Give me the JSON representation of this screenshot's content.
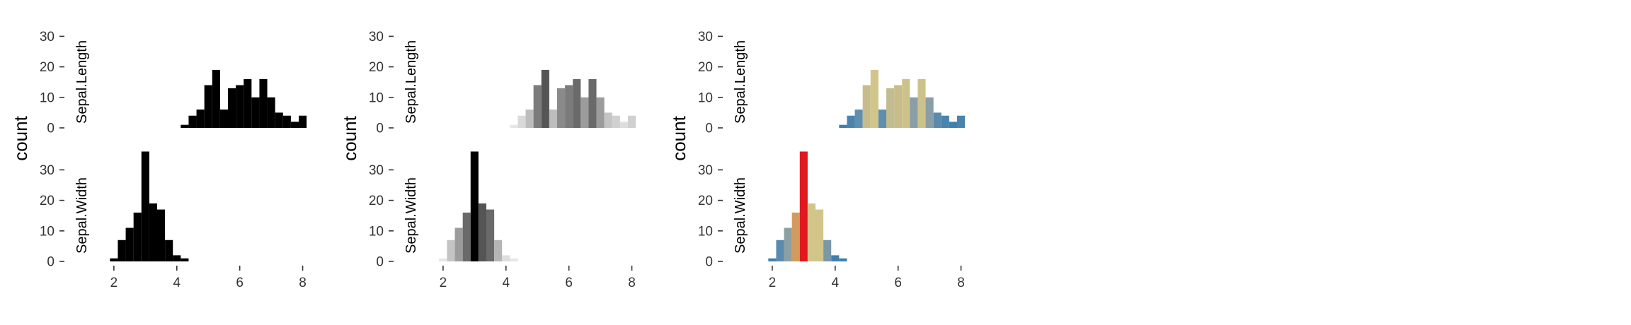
{
  "chart_data": [
    {
      "type": "bar",
      "panel": "histogram-black",
      "ylabel": "count",
      "xlim": [
        1.8,
        8.1
      ],
      "ylim": [
        0,
        37
      ],
      "yticks": [
        0,
        10,
        20,
        30
      ],
      "xticks": [
        2,
        4,
        6,
        8
      ],
      "bar_width": 0.25,
      "facets": [
        {
          "label": "Sepal.Length",
          "bars": [
            {
              "x": 4.25,
              "count": 1,
              "color": "#000000"
            },
            {
              "x": 4.5,
              "count": 4,
              "color": "#000000"
            },
            {
              "x": 4.75,
              "count": 6,
              "color": "#000000"
            },
            {
              "x": 5.0,
              "count": 14,
              "color": "#000000"
            },
            {
              "x": 5.25,
              "count": 19,
              "color": "#000000"
            },
            {
              "x": 5.5,
              "count": 6,
              "color": "#000000"
            },
            {
              "x": 5.75,
              "count": 13,
              "color": "#000000"
            },
            {
              "x": 6.0,
              "count": 14,
              "color": "#000000"
            },
            {
              "x": 6.25,
              "count": 16,
              "color": "#000000"
            },
            {
              "x": 6.5,
              "count": 10,
              "color": "#000000"
            },
            {
              "x": 6.75,
              "count": 16,
              "color": "#000000"
            },
            {
              "x": 7.0,
              "count": 10,
              "color": "#000000"
            },
            {
              "x": 7.25,
              "count": 5,
              "color": "#000000"
            },
            {
              "x": 7.5,
              "count": 4,
              "color": "#000000"
            },
            {
              "x": 7.75,
              "count": 2,
              "color": "#000000"
            },
            {
              "x": 8.0,
              "count": 4,
              "color": "#000000"
            }
          ]
        },
        {
          "label": "Sepal.Width",
          "bars": [
            {
              "x": 2.0,
              "count": 1,
              "color": "#000000"
            },
            {
              "x": 2.25,
              "count": 7,
              "color": "#000000"
            },
            {
              "x": 2.5,
              "count": 11,
              "color": "#000000"
            },
            {
              "x": 2.75,
              "count": 16,
              "color": "#000000"
            },
            {
              "x": 3.0,
              "count": 36,
              "color": "#000000"
            },
            {
              "x": 3.25,
              "count": 19,
              "color": "#000000"
            },
            {
              "x": 3.5,
              "count": 17,
              "color": "#000000"
            },
            {
              "x": 3.75,
              "count": 7,
              "color": "#000000"
            },
            {
              "x": 4.0,
              "count": 2,
              "color": "#000000"
            },
            {
              "x": 4.25,
              "count": 1,
              "color": "#000000"
            }
          ]
        }
      ]
    },
    {
      "type": "bar",
      "panel": "histogram-grey",
      "ylabel": "count",
      "xlim": [
        1.8,
        8.1
      ],
      "ylim": [
        0,
        37
      ],
      "yticks": [
        0,
        10,
        20,
        30
      ],
      "xticks": [
        2,
        4,
        6,
        8
      ],
      "bar_width": 0.25,
      "facets": [
        {
          "label": "Sepal.Length",
          "bars": [
            {
              "x": 4.25,
              "count": 1,
              "color": "#e6e6e6"
            },
            {
              "x": 4.5,
              "count": 4,
              "color": "#d9d9d9"
            },
            {
              "x": 4.75,
              "count": 6,
              "color": "#bdbdbd"
            },
            {
              "x": 5.0,
              "count": 14,
              "color": "#7b7b7b"
            },
            {
              "x": 5.25,
              "count": 19,
              "color": "#555555"
            },
            {
              "x": 5.5,
              "count": 6,
              "color": "#bdbdbd"
            },
            {
              "x": 5.75,
              "count": 13,
              "color": "#8a8a8a"
            },
            {
              "x": 6.0,
              "count": 14,
              "color": "#7b7b7b"
            },
            {
              "x": 6.25,
              "count": 16,
              "color": "#6a6a6a"
            },
            {
              "x": 6.5,
              "count": 10,
              "color": "#9c9c9c"
            },
            {
              "x": 6.75,
              "count": 16,
              "color": "#6a6a6a"
            },
            {
              "x": 7.0,
              "count": 10,
              "color": "#9c9c9c"
            },
            {
              "x": 7.25,
              "count": 5,
              "color": "#c4c4c4"
            },
            {
              "x": 7.5,
              "count": 4,
              "color": "#d0d0d0"
            },
            {
              "x": 7.75,
              "count": 2,
              "color": "#dedede"
            },
            {
              "x": 8.0,
              "count": 4,
              "color": "#d0d0d0"
            }
          ]
        },
        {
          "label": "Sepal.Width",
          "bars": [
            {
              "x": 2.0,
              "count": 1,
              "color": "#e6e6e6"
            },
            {
              "x": 2.25,
              "count": 7,
              "color": "#c4c4c4"
            },
            {
              "x": 2.5,
              "count": 11,
              "color": "#9c9c9c"
            },
            {
              "x": 2.75,
              "count": 16,
              "color": "#6a6a6a"
            },
            {
              "x": 3.0,
              "count": 36,
              "color": "#000000"
            },
            {
              "x": 3.25,
              "count": 19,
              "color": "#555555"
            },
            {
              "x": 3.5,
              "count": 17,
              "color": "#6a6a6a"
            },
            {
              "x": 3.75,
              "count": 7,
              "color": "#b5b5b5"
            },
            {
              "x": 4.0,
              "count": 2,
              "color": "#dedede"
            },
            {
              "x": 4.25,
              "count": 1,
              "color": "#e6e6e6"
            }
          ]
        }
      ]
    },
    {
      "type": "bar",
      "panel": "histogram-colour",
      "ylabel": "count",
      "xlim": [
        1.8,
        8.1
      ],
      "ylim": [
        0,
        37
      ],
      "yticks": [
        0,
        10,
        20,
        30
      ],
      "xticks": [
        2,
        4,
        6,
        8
      ],
      "bar_width": 0.25,
      "facets": [
        {
          "label": "Sepal.Length",
          "bars": [
            {
              "x": 4.25,
              "count": 1,
              "color": "#3f7fad"
            },
            {
              "x": 4.5,
              "count": 4,
              "color": "#4a84ad"
            },
            {
              "x": 4.75,
              "count": 6,
              "color": "#5f8fae"
            },
            {
              "x": 5.0,
              "count": 14,
              "color": "#c7bd8a"
            },
            {
              "x": 5.25,
              "count": 19,
              "color": "#d2c58a"
            },
            {
              "x": 5.5,
              "count": 6,
              "color": "#5f8fae"
            },
            {
              "x": 5.75,
              "count": 13,
              "color": "#c2bc91"
            },
            {
              "x": 6.0,
              "count": 14,
              "color": "#c7bd8a"
            },
            {
              "x": 6.25,
              "count": 16,
              "color": "#cdc28b"
            },
            {
              "x": 6.5,
              "count": 10,
              "color": "#8a9ea6"
            },
            {
              "x": 6.75,
              "count": 16,
              "color": "#cdc28b"
            },
            {
              "x": 7.0,
              "count": 10,
              "color": "#8a9ea6"
            },
            {
              "x": 7.25,
              "count": 5,
              "color": "#5a8bad"
            },
            {
              "x": 7.5,
              "count": 4,
              "color": "#4a84ad"
            },
            {
              "x": 7.75,
              "count": 2,
              "color": "#3f7fad"
            },
            {
              "x": 8.0,
              "count": 4,
              "color": "#4a84ad"
            }
          ]
        },
        {
          "label": "Sepal.Width",
          "bars": [
            {
              "x": 2.0,
              "count": 1,
              "color": "#3f7fad"
            },
            {
              "x": 2.25,
              "count": 7,
              "color": "#5a8bad"
            },
            {
              "x": 2.5,
              "count": 11,
              "color": "#8c9fa3"
            },
            {
              "x": 2.75,
              "count": 16,
              "color": "#d39a5e"
            },
            {
              "x": 3.0,
              "count": 36,
              "color": "#e0181f"
            },
            {
              "x": 3.25,
              "count": 19,
              "color": "#d2c58a"
            },
            {
              "x": 3.5,
              "count": 17,
              "color": "#d2c58a"
            },
            {
              "x": 3.75,
              "count": 7,
              "color": "#7c97a6"
            },
            {
              "x": 4.0,
              "count": 2,
              "color": "#3f7fad"
            },
            {
              "x": 4.25,
              "count": 1,
              "color": "#3f7fad"
            }
          ]
        }
      ]
    }
  ]
}
